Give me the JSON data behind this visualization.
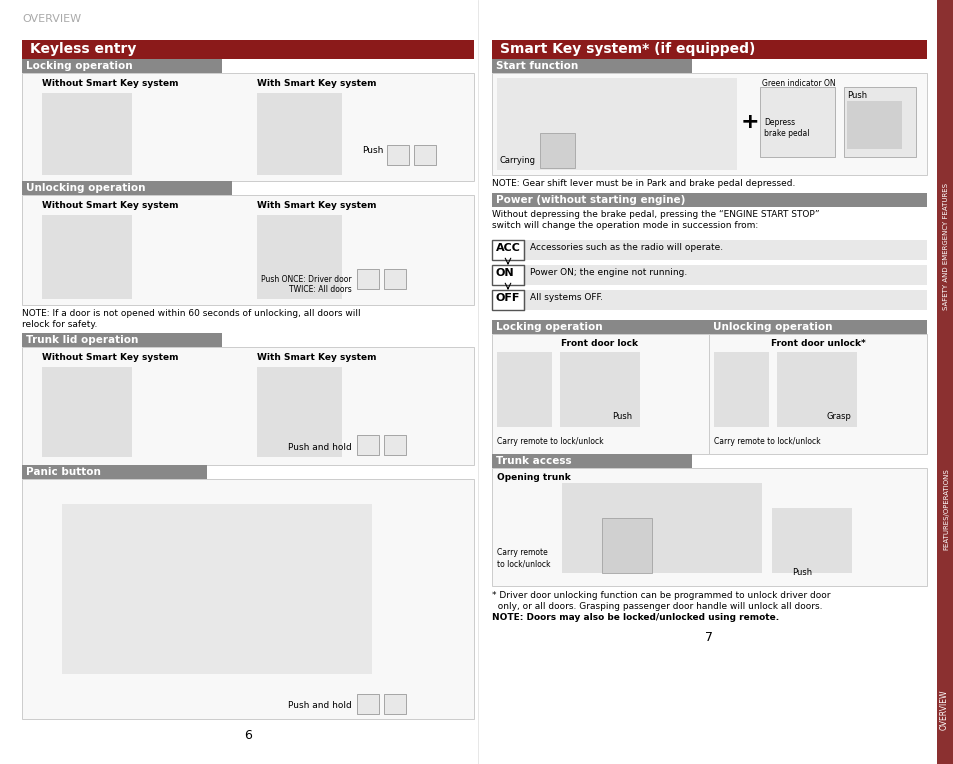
{
  "page_bg": "#ffffff",
  "overview_text": "OVERVIEW",
  "dark_red": "#8b1a1a",
  "gray_header": "#888888",
  "sidebar_color": "#8b3030",
  "left_title": "Keyless entry",
  "right_title": "Smart Key system* (if equipped)",
  "note_between": "NOTE: If a door is not opened within 60 seconds of unlocking, all doors will\nrelock for safety.",
  "acc_on_off": [
    {
      "tag": "ACC",
      "tag_color": "#c0c0c0",
      "text": "Accessories such as the radio will operate."
    },
    {
      "tag": "ON",
      "tag_color": "#888888",
      "text": "Power ON; the engine not running."
    },
    {
      "tag": "OFF",
      "tag_color": "#a8a8a8",
      "text": "All systems OFF."
    }
  ],
  "page_num_left": "6",
  "page_num_right": "7",
  "green_indicator_text": "Green indicator ON",
  "depress_text": "Depress\nbrake pedal",
  "push_text": "Push",
  "carrying_text": "Carrying",
  "smart_note": "NOTE: Gear shift lever must be in Park and brake pedal depressed.",
  "power_text": "Without depressing the brake pedal, pressing the “ENGINE START STOP”\nswitch will change the operation mode in succession from:",
  "locking_op_label": "Locking operation",
  "unlocking_op_label": "Unlocking operation",
  "front_door_lock": "Front door lock",
  "front_door_unlock": "Front door unlock*",
  "carry_remote": "Carry remote to lock/unlock",
  "push_label": "Push",
  "grasp_label": "Grasp",
  "trunk_access_label": "Trunk access",
  "opening_trunk": "Opening trunk",
  "carry_remote2": "Carry remote\nto lock/unlock",
  "driver_door_note": "* Driver door unlocking function can be programmed to unlock driver door\n  only, or all doors. Grasping passenger door handle will unlock all doors.",
  "note_doors": "NOTE: Doors may also be locked/unlocked using remote.",
  "features_text": "FEATURES/OPERATIONS",
  "safety_text": "SAFETY AND EMERGENCY FEATURES",
  "overview_sidebar": "OVERVIEW"
}
